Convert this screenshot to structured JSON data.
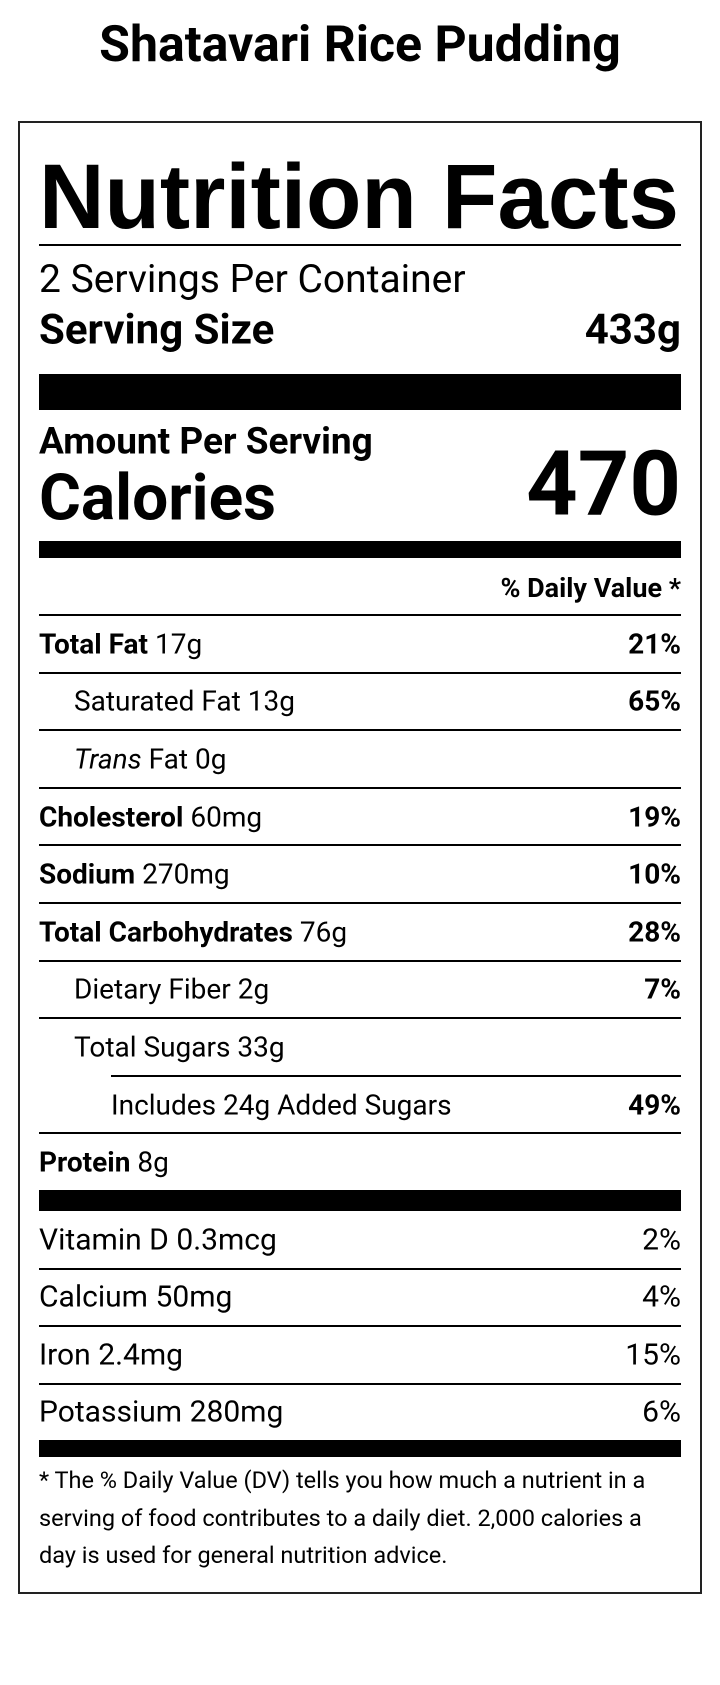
{
  "title": "Shatavari Rice Pudding",
  "label": {
    "header": "Nutrition Facts",
    "servings_per_container": "2 Servings Per Container",
    "serving_size": {
      "label": "Serving Size",
      "value": "433g"
    },
    "amount_per_serving": "Amount Per Serving",
    "calories": {
      "label": "Calories",
      "value": "470"
    },
    "daily_value_header": "% Daily Value *",
    "nutrients": [
      {
        "name": "Total Fat",
        "amount": "17g",
        "dv": "21%",
        "level": 0
      },
      {
        "name": "Saturated Fat",
        "amount": "13g",
        "dv": "65%",
        "level": 1
      },
      {
        "italic_prefix": "Trans",
        "name": "Fat",
        "amount": "0g",
        "level": 1
      },
      {
        "name": "Cholesterol",
        "amount": "60mg",
        "dv": "19%",
        "level": 0
      },
      {
        "name": "Sodium",
        "amount": "270mg",
        "dv": "10%",
        "level": 0
      },
      {
        "name": "Total Carbohydrates",
        "amount": "76g",
        "dv": "28%",
        "level": 0
      },
      {
        "name": "Dietary Fiber",
        "amount": "2g",
        "dv": "7%",
        "level": 1
      },
      {
        "name": "Total Sugars",
        "amount": "33g",
        "level": 1
      },
      {
        "name": "Includes 24g Added Sugars",
        "dv": "49%",
        "level": 2
      },
      {
        "name": "Protein",
        "amount": "8g",
        "level": 0
      }
    ],
    "vitamins": [
      {
        "name": "Vitamin D",
        "amount": "0.3mcg",
        "dv": "2%"
      },
      {
        "name": "Calcium",
        "amount": "50mg",
        "dv": "4%"
      },
      {
        "name": "Iron",
        "amount": "2.4mg",
        "dv": "15%"
      },
      {
        "name": "Potassium",
        "amount": "280mg",
        "dv": "6%"
      }
    ],
    "footnote": "* The % Daily Value (DV) tells you how much a nutrient in a serving of food contributes to a daily diet. 2,000 calories a day is used for general nutrition advice."
  }
}
